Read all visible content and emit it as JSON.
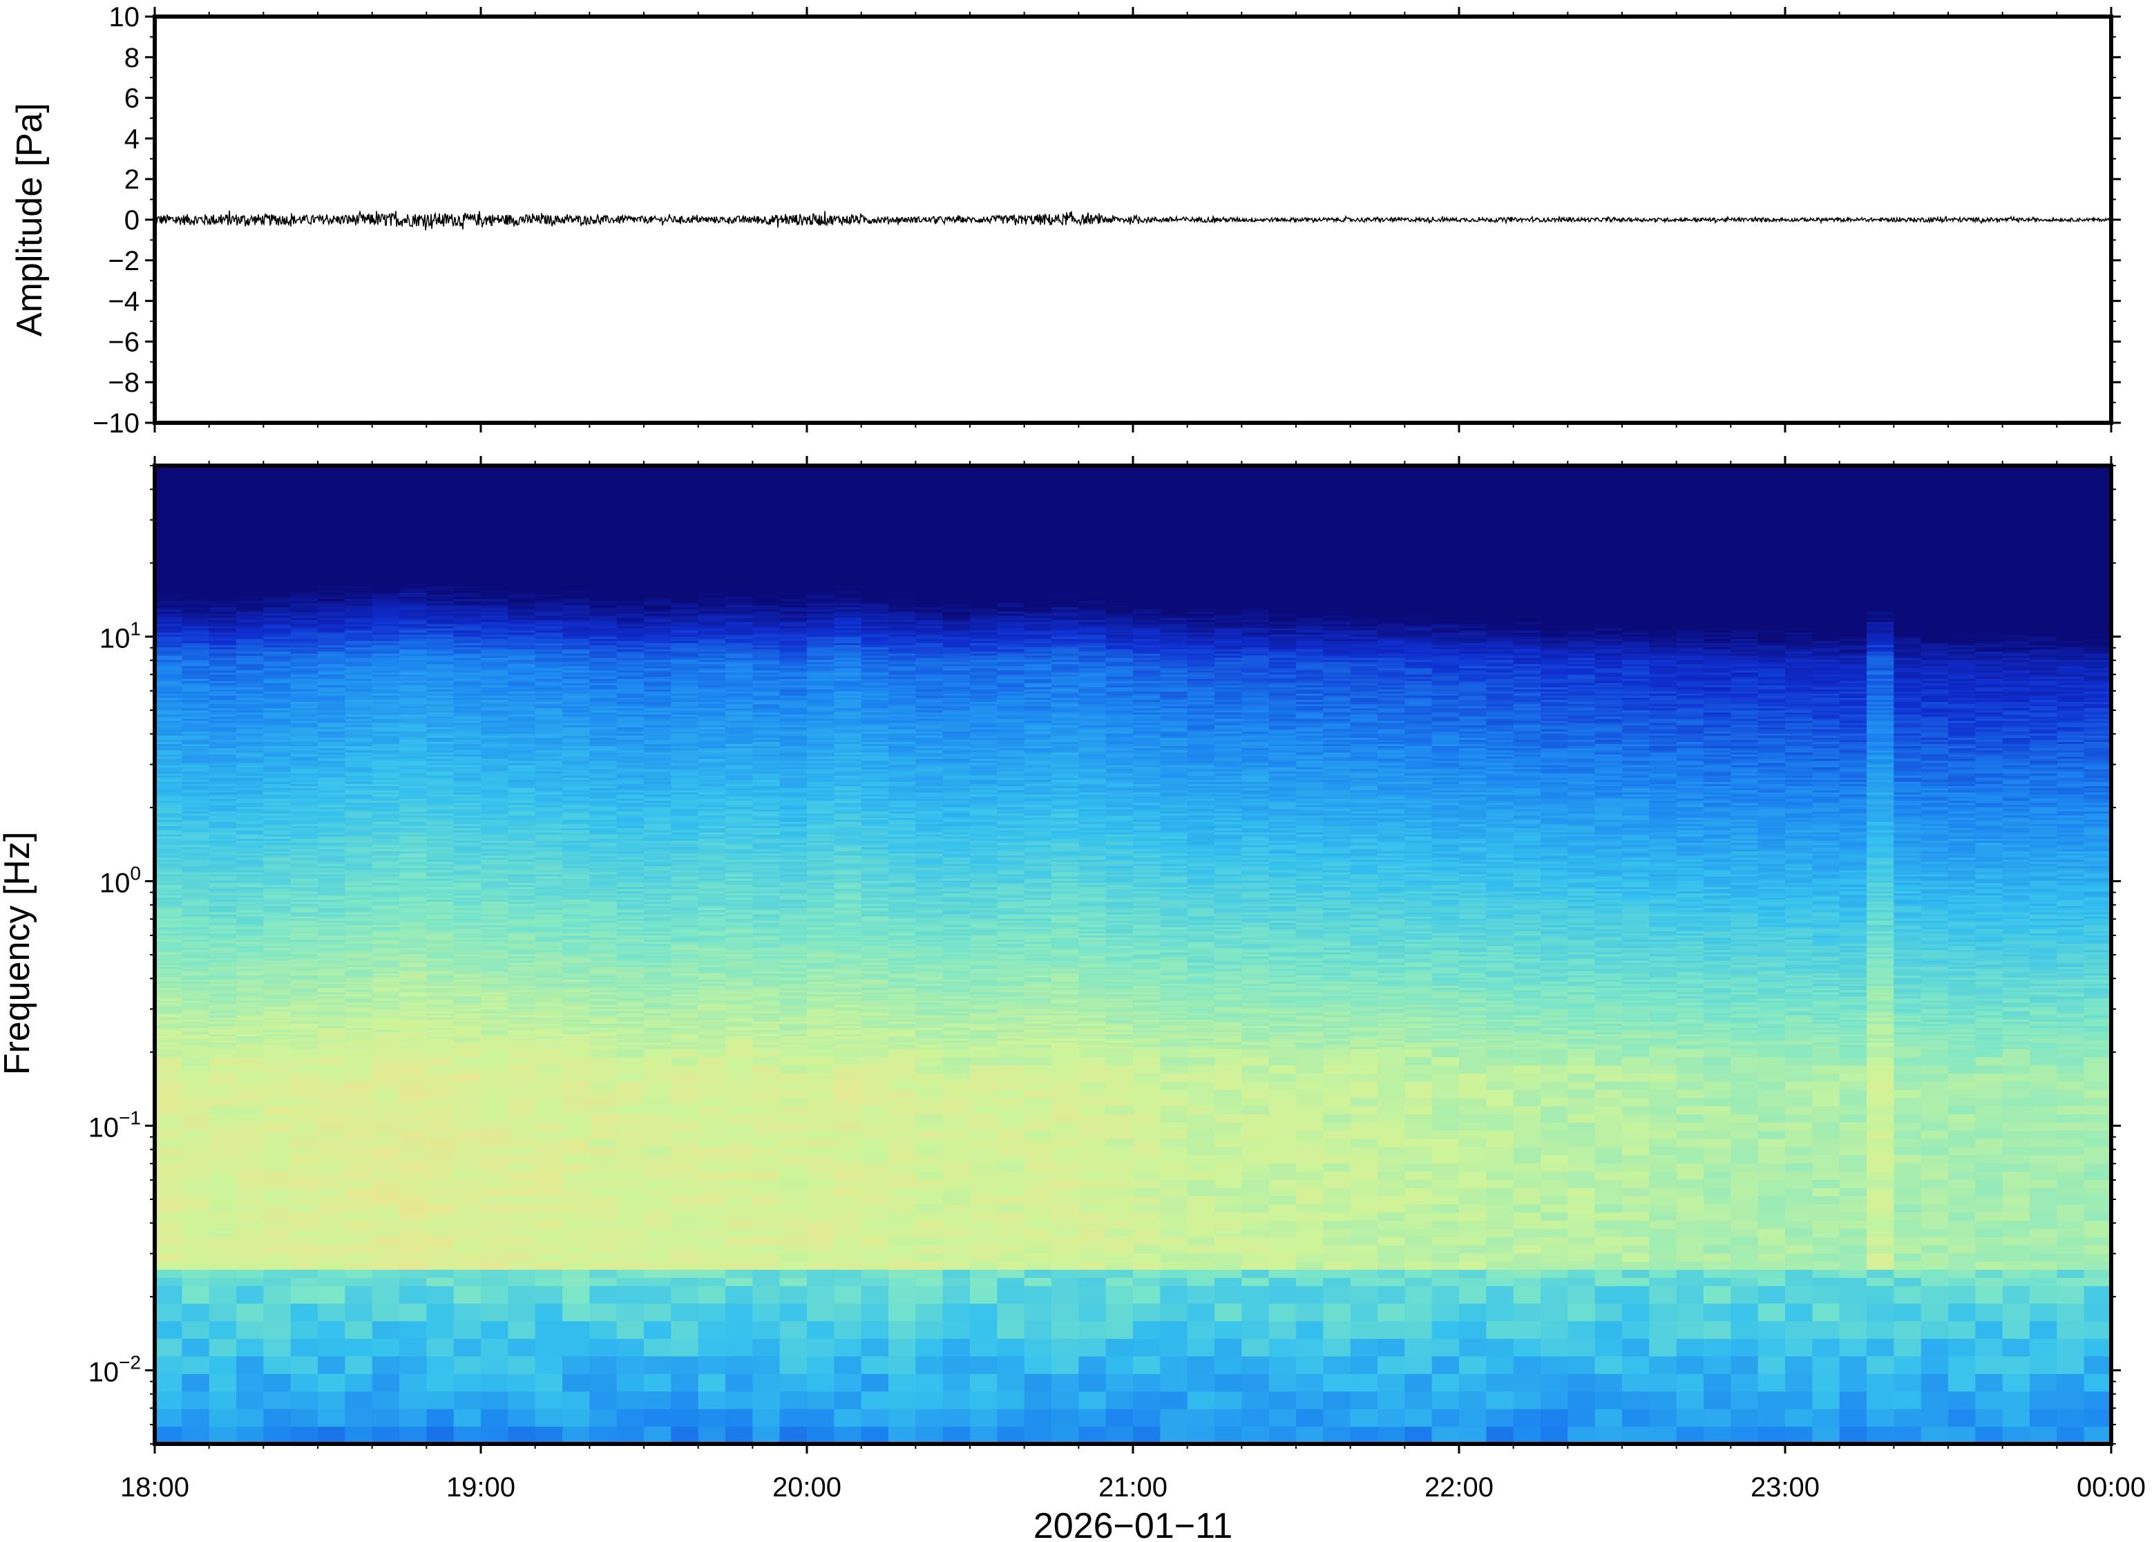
{
  "chart_data": [
    {
      "type": "line",
      "panel": "waveform",
      "ylabel": "Amplitude [Pa]",
      "ylim": [
        -10,
        10
      ],
      "yticks": [
        10,
        8,
        6,
        4,
        2,
        0,
        -2,
        -4,
        -6,
        -8,
        -10
      ],
      "ytick_labels": [
        "10",
        "8",
        "6",
        "4",
        "2",
        "0",
        "−2",
        "−4",
        "−6",
        "−8",
        "−10"
      ],
      "xlim": [
        "18:00",
        "00:00"
      ],
      "series": [
        {
          "color": "#000000",
          "description_values": "near-zero pressure trace; envelope amplitude in Pa by hour fraction",
          "x_hours": [
            0,
            0.25,
            0.5,
            0.75,
            1.0,
            1.25,
            1.5,
            1.75,
            2.0,
            2.25,
            2.5,
            2.75,
            3.0,
            3.25,
            3.5,
            3.75,
            4.0,
            4.25,
            4.5,
            4.75,
            5.0,
            5.25,
            5.5,
            5.75,
            6.0
          ],
          "envelope_pa": [
            0.25,
            0.3,
            0.22,
            0.35,
            0.3,
            0.22,
            0.18,
            0.16,
            0.3,
            0.16,
            0.14,
            0.3,
            0.15,
            0.12,
            0.1,
            0.1,
            0.1,
            0.1,
            0.09,
            0.09,
            0.09,
            0.09,
            0.12,
            0.08,
            0.08
          ]
        }
      ]
    },
    {
      "type": "heatmap",
      "panel": "spectrogram",
      "ylabel": "Frequency [Hz]",
      "xlabel": "2026−01−11",
      "yscale": "log",
      "ylim": [
        0.005,
        50
      ],
      "yticks": [
        0.01,
        0.1,
        1,
        10
      ],
      "ytick_labels": [
        {
          "base": "10",
          "exp": "−2"
        },
        {
          "base": "10",
          "exp": "−1"
        },
        {
          "base": "10",
          "exp": "0"
        },
        {
          "base": "10",
          "exp": "1"
        }
      ],
      "xticks": [
        "18:00",
        "19:00",
        "20:00",
        "21:00",
        "22:00",
        "23:00",
        "00:00"
      ],
      "colormap": [
        "#0a0a78",
        "#0f2fd0",
        "#1c86f0",
        "#35c1ee",
        "#7ce6c8",
        "#cdf49a",
        "#f8e08a",
        "#f9b26a"
      ],
      "time_columns": 72,
      "description_levels": "normalized power 0-1; high power near 0.03-0.2 Hz, decreasing toward high frequencies; dark above ~10 Hz",
      "column_energy": [
        0.62,
        0.6,
        0.58,
        0.6,
        0.62,
        0.63,
        0.64,
        0.66,
        0.68,
        0.7,
        0.68,
        0.66,
        0.65,
        0.64,
        0.63,
        0.62,
        0.6,
        0.58,
        0.58,
        0.6,
        0.61,
        0.62,
        0.6,
        0.58,
        0.62,
        0.64,
        0.6,
        0.58,
        0.56,
        0.55,
        0.56,
        0.57,
        0.58,
        0.6,
        0.58,
        0.55,
        0.54,
        0.52,
        0.5,
        0.5,
        0.5,
        0.48,
        0.48,
        0.47,
        0.47,
        0.46,
        0.46,
        0.44,
        0.44,
        0.42,
        0.42,
        0.4,
        0.4,
        0.38,
        0.38,
        0.36,
        0.36,
        0.34,
        0.35,
        0.34,
        0.34,
        0.33,
        0.32,
        0.52,
        0.32,
        0.31,
        0.3,
        0.3,
        0.3,
        0.3,
        0.3,
        0.3
      ]
    }
  ]
}
